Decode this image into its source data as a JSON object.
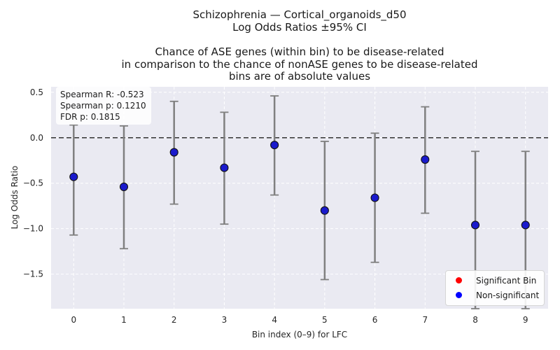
{
  "title": {
    "lines": [
      "Schizophrenia — Cortical_organoids_d50",
      "Log Odds Ratios ±95% CI",
      "",
      "Chance of ASE genes (within bin) to be disease-related",
      "in comparison to the chance of nonASE genes to be disease-related",
      "bins are of absolute values"
    ]
  },
  "stats": {
    "spearman_r": "Spearman R: -0.523",
    "spearman_p": "Spearman p: 0.1210",
    "fdr_p": "FDR p: 0.1815"
  },
  "legend": {
    "items": [
      {
        "label": "Significant Bin",
        "color": "#ff0000"
      },
      {
        "label": "Non-significant",
        "color": "#0000ff"
      }
    ]
  },
  "colors": {
    "plot_background": "#eaeaf2",
    "grid": "#ffffff",
    "errorbar": "#808080",
    "point": "#1a1acc",
    "reference_line": "#333333"
  },
  "chart_data": {
    "type": "scatter",
    "xlabel": "Bin index (0–9) for LFC",
    "ylabel": "Log Odds Ratio",
    "xlim": [
      -0.45,
      9.45
    ],
    "ylim": [
      -1.88,
      0.56
    ],
    "xticks": [
      0,
      1,
      2,
      3,
      4,
      5,
      6,
      7,
      8,
      9
    ],
    "yticks": [
      -1.5,
      -1.0,
      -0.5,
      0.0,
      0.5
    ],
    "ytick_labels": [
      "−1.5",
      "−1.0",
      "−0.5",
      "0.0",
      "0.5"
    ],
    "reference_line": 0.0,
    "grid": true,
    "legend_position": "lower-right",
    "series": [
      {
        "name": "Non-significant",
        "x": [
          0,
          1,
          2,
          3,
          4,
          5,
          6,
          7,
          8,
          9
        ],
        "y": [
          -0.43,
          -0.54,
          -0.16,
          -0.33,
          -0.08,
          -0.8,
          -0.66,
          -0.24,
          -0.96,
          -0.96
        ],
        "ci_low": [
          -1.07,
          -1.22,
          -0.73,
          -0.95,
          -0.63,
          -1.56,
          -1.37,
          -0.83,
          -1.88,
          -1.88
        ],
        "ci_high": [
          0.14,
          0.13,
          0.4,
          0.28,
          0.46,
          -0.04,
          0.05,
          0.34,
          -0.15,
          -0.15
        ],
        "significant": [
          false,
          false,
          false,
          false,
          false,
          false,
          false,
          false,
          false,
          false
        ]
      }
    ]
  }
}
